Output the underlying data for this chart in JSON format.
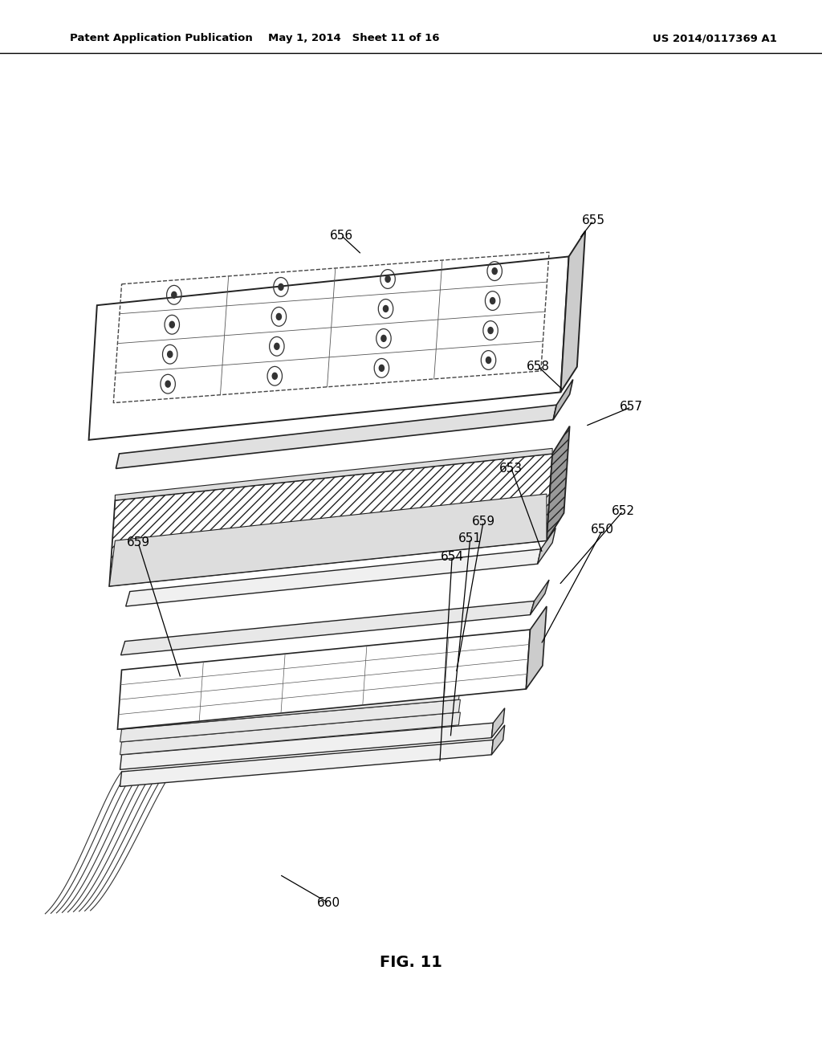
{
  "header_left": "Patent Application Publication",
  "header_mid": "May 1, 2014   Sheet 11 of 16",
  "header_right": "US 2014/0117369 A1",
  "figure_label": "FIG. 11",
  "background_color": "#ffffff"
}
